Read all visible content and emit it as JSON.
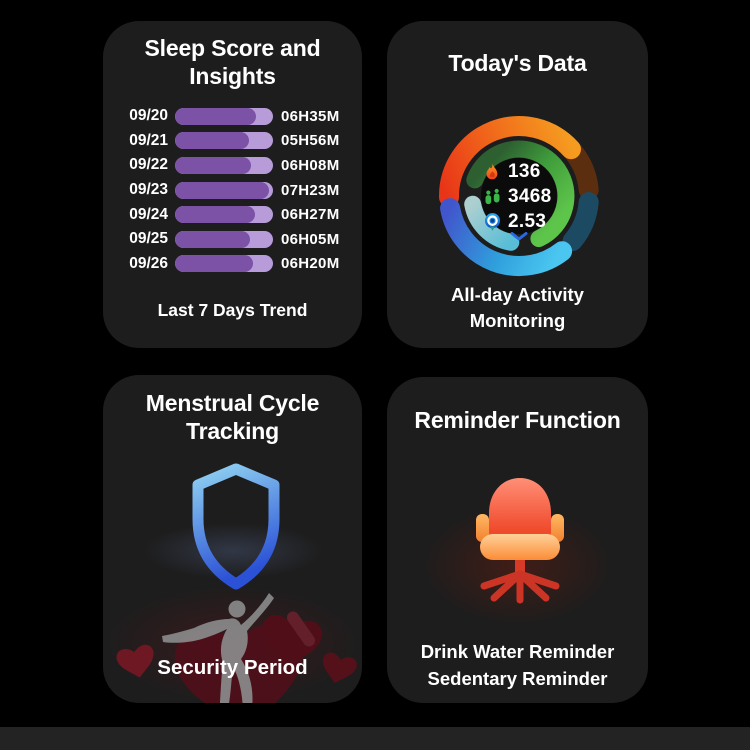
{
  "page": {
    "background_color": "#000000",
    "bottom_bar_color": "#232323",
    "card_color": "#1d1d1d"
  },
  "sleep_card": {
    "title_lines": [
      "Sleep Score and",
      "Insights"
    ],
    "caption": "Last 7 Days Trend",
    "bar_track_color": "#b89cd9",
    "bar_fill_color": "#7b52a6",
    "rows": [
      {
        "date": "09/20",
        "duration": "06H35M",
        "pct": 83
      },
      {
        "date": "09/21",
        "duration": "05H56M",
        "pct": 76
      },
      {
        "date": "09/22",
        "duration": "06H08M",
        "pct": 78
      },
      {
        "date": "09/23",
        "duration": "07H23M",
        "pct": 96
      },
      {
        "date": "09/24",
        "duration": "06H27M",
        "pct": 82
      },
      {
        "date": "09/25",
        "duration": "06H05M",
        "pct": 77
      },
      {
        "date": "09/26",
        "duration": "06H20M",
        "pct": 80
      }
    ]
  },
  "activity_card": {
    "title": "Today's Data",
    "caption_lines": [
      "All-day Activity",
      "Monitoring"
    ],
    "metrics": [
      {
        "icon": "flame-icon",
        "value": "136"
      },
      {
        "icon": "footprints-icon",
        "value": "3468"
      },
      {
        "icon": "location-pin-icon",
        "value": "2.53"
      }
    ],
    "ring_colors": {
      "outer_top_gradient": [
        "#e83418",
        "#f59b20"
      ],
      "outer_right_remainder": "#5c2e10",
      "outer_bottom_gradient": [
        "#4156cc",
        "#4ac6f0"
      ],
      "outer_bottom_remainder": "#1c4a63",
      "inner_green_gradient": [
        "#2d5f31",
        "#5ec54b"
      ],
      "inner_teal_gradient": [
        "#accfd0",
        "#58bdd6"
      ]
    }
  },
  "menstrual_card": {
    "title_lines": [
      "Menstrual Cycle",
      "Tracking"
    ],
    "caption": "Security Period",
    "shield_gradient": [
      "#90d2f2",
      "#2b51d6"
    ],
    "heart_color": "#571019"
  },
  "reminder_card": {
    "title": "Reminder Function",
    "caption_lines": [
      "Drink Water Reminder",
      "Sedentary Reminder"
    ],
    "chair_colors": {
      "back": "#f04a2c",
      "seat": "#fb8c36",
      "arms": "#ffb864",
      "legs": "#cc3526"
    }
  }
}
